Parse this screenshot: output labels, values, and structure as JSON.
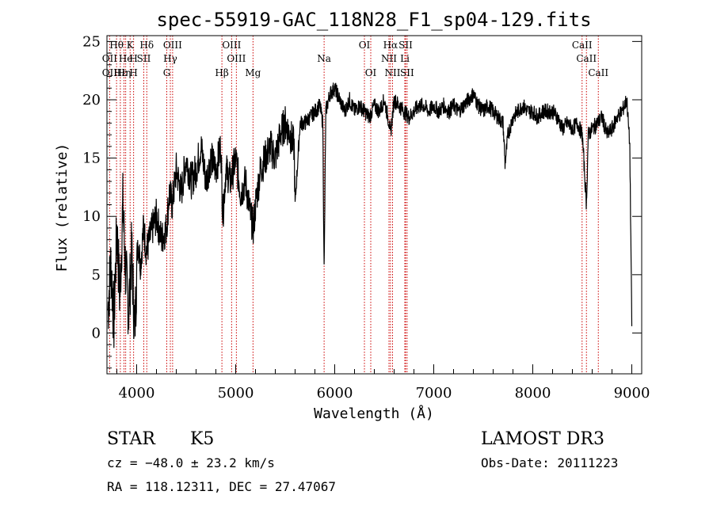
{
  "chart_data": {
    "type": "line",
    "title": "spec-55919-GAC_118N28_F1_sp04-129.fits",
    "xlabel": "Wavelength (Å)",
    "ylabel": "Flux (relative)",
    "xlim": [
      3700,
      9100
    ],
    "ylim": [
      -3.5,
      25.5
    ],
    "xticks": [
      {
        "value": 4000,
        "label": "4000"
      },
      {
        "value": 5000,
        "label": "5000"
      },
      {
        "value": 6000,
        "label": "6000"
      },
      {
        "value": 7000,
        "label": "7000"
      },
      {
        "value": 8000,
        "label": "8000"
      },
      {
        "value": 9000,
        "label": "9000"
      }
    ],
    "yticks": [
      {
        "value": 0,
        "label": "0"
      },
      {
        "value": 5,
        "label": "5"
      },
      {
        "value": 10,
        "label": "10"
      },
      {
        "value": 15,
        "label": "15"
      },
      {
        "value": 20,
        "label": "20"
      },
      {
        "value": 25,
        "label": "25"
      }
    ],
    "line_color": "#000000",
    "marker_color": "#cc0000",
    "spectrum": {
      "name": "flux",
      "x": [
        3710,
        3740,
        3770,
        3800,
        3830,
        3860,
        3890,
        3920,
        3950,
        3980,
        4010,
        4040,
        4070,
        4100,
        4130,
        4160,
        4200,
        4250,
        4300,
        4330,
        4360,
        4400,
        4450,
        4500,
        4550,
        4600,
        4650,
        4700,
        4750,
        4800,
        4850,
        4870,
        4900,
        4950,
        5000,
        5050,
        5100,
        5150,
        5180,
        5200,
        5250,
        5300,
        5350,
        5400,
        5450,
        5500,
        5550,
        5590,
        5600,
        5650,
        5700,
        5750,
        5800,
        5850,
        5880,
        5893,
        5910,
        5950,
        6000,
        6050,
        6100,
        6150,
        6200,
        6250,
        6300,
        6350,
        6400,
        6450,
        6500,
        6550,
        6563,
        6600,
        6650,
        6700,
        6750,
        6800,
        6850,
        6900,
        6950,
        7000,
        7050,
        7100,
        7150,
        7200,
        7250,
        7300,
        7350,
        7400,
        7450,
        7500,
        7550,
        7600,
        7650,
        7700,
        7720,
        7750,
        7800,
        7850,
        7900,
        7950,
        8000,
        8050,
        8100,
        8150,
        8200,
        8250,
        8300,
        8350,
        8400,
        8450,
        8500,
        8542,
        8560,
        8600,
        8650,
        8700,
        8750,
        8800,
        8850,
        8900,
        8950,
        8980,
        9000
      ],
      "y": [
        2,
        6,
        1,
        9,
        3,
        11,
        5,
        2,
        7,
        0,
        8,
        6,
        9,
        7,
        8,
        9,
        10,
        8,
        9,
        12,
        11,
        14,
        12,
        15,
        13,
        14,
        16,
        13,
        15,
        14,
        16,
        10,
        14,
        13,
        15,
        12,
        13,
        10,
        9,
        11,
        14,
        15,
        16,
        15,
        17,
        18,
        17,
        16,
        11,
        18,
        18,
        18.5,
        19,
        19.5,
        18,
        5,
        19,
        20.5,
        21,
        20,
        19,
        20,
        19,
        19.5,
        19,
        18.5,
        19.5,
        19,
        20,
        18,
        17,
        20,
        19.5,
        19,
        18.5,
        19,
        19.5,
        19.5,
        19,
        19.5,
        19,
        19.5,
        19,
        19.5,
        19,
        19.5,
        20,
        20.5,
        19.5,
        19,
        19.5,
        19,
        18.5,
        18,
        14.5,
        17,
        18.5,
        19,
        19.5,
        19,
        19,
        18.5,
        19,
        19,
        19,
        18.5,
        17.5,
        18,
        17.5,
        18,
        17,
        11,
        17,
        17.5,
        18,
        18.5,
        17,
        17.5,
        18.5,
        19,
        20,
        16,
        0.5
      ]
    },
    "line_markers": [
      {
        "label": "Hθ",
        "x": 3797,
        "row": 1
      },
      {
        "label": "K",
        "x": 3934,
        "row": 1
      },
      {
        "label": "Hδ",
        "x": 4102,
        "row": 1
      },
      {
        "label": "OIII",
        "x": 4363,
        "row": 1
      },
      {
        "label": "OIII",
        "x": 4959,
        "row": 1
      },
      {
        "label": "OI",
        "x": 6300,
        "row": 1
      },
      {
        "label": "Hα",
        "x": 6563,
        "row": 1
      },
      {
        "label": "SII",
        "x": 6716,
        "row": 1
      },
      {
        "label": "CaII",
        "x": 8498,
        "row": 1
      },
      {
        "label": "OII",
        "x": 3727,
        "row": 2
      },
      {
        "label": "He",
        "x": 3889,
        "row": 2
      },
      {
        "label": "H",
        "x": 3969,
        "row": 2
      },
      {
        "label": "SII",
        "x": 4072,
        "row": 2
      },
      {
        "label": "Hγ",
        "x": 4340,
        "row": 2
      },
      {
        "label": "OIII",
        "x": 5007,
        "row": 2
      },
      {
        "label": "Na",
        "x": 5893,
        "row": 2
      },
      {
        "label": "NII",
        "x": 6548,
        "row": 2
      },
      {
        "label": "Li",
        "x": 6708,
        "row": 2
      },
      {
        "label": "CaII",
        "x": 8542,
        "row": 2
      },
      {
        "label": "OII",
        "x": 3727,
        "row": 3
      },
      {
        "label": "Hε",
        "x": 3835,
        "row": 3
      },
      {
        "label": "Hη",
        "x": 3872,
        "row": 3
      },
      {
        "label": "H",
        "x": 3969,
        "row": 3
      },
      {
        "label": "G",
        "x": 4304,
        "row": 3
      },
      {
        "label": "Hβ",
        "x": 4861,
        "row": 3
      },
      {
        "label": "Mg",
        "x": 5175,
        "row": 3
      },
      {
        "label": "OI",
        "x": 6364,
        "row": 3
      },
      {
        "label": "NII",
        "x": 6584,
        "row": 3
      },
      {
        "label": "SII",
        "x": 6731,
        "row": 3
      },
      {
        "label": "CaII",
        "x": 8662,
        "row": 3
      }
    ]
  },
  "info": {
    "object_class": "STAR",
    "subclass": "K5",
    "redshift": "cz = −48.0 ± 23.2 km/s",
    "coords": "RA = 118.12311, DEC =  27.47067",
    "survey": "LAMOST DR3",
    "obs_date": "Obs-Date: 20111223"
  }
}
